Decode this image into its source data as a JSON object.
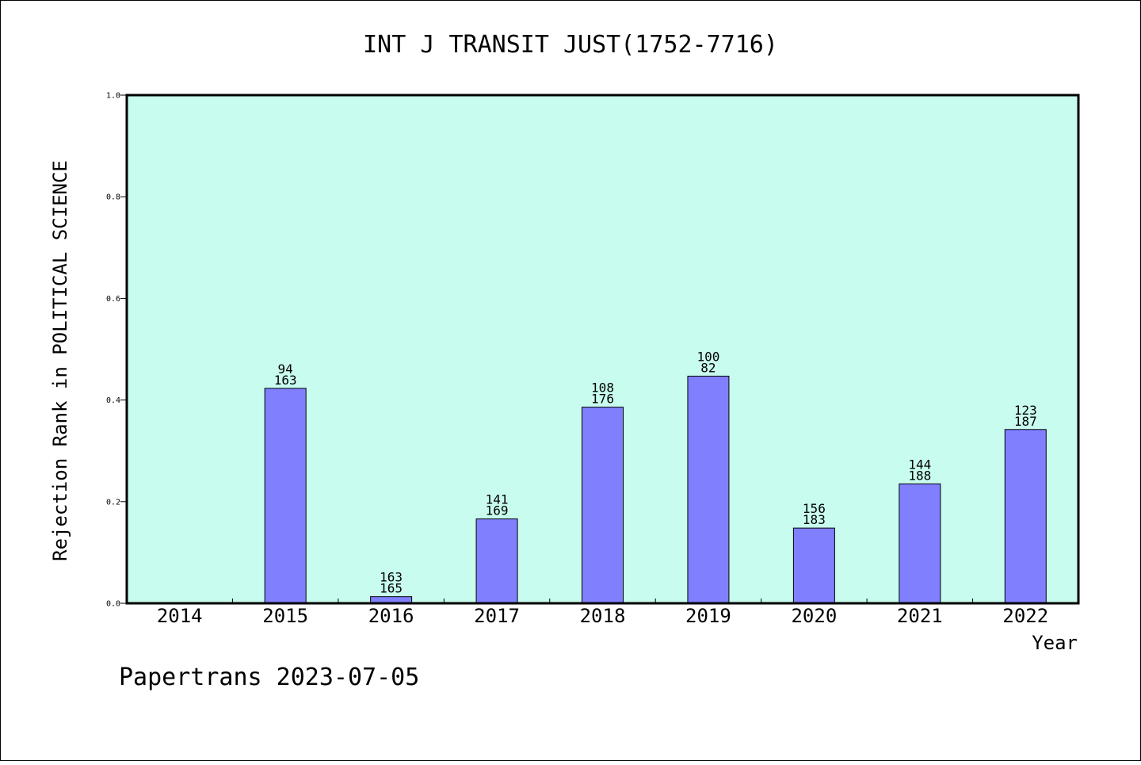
{
  "chart_data": {
    "type": "bar",
    "title": "INT J TRANSIT JUST(1752-7716)",
    "xlabel": "Year",
    "ylabel": "Rejection Rank in POLITICAL SCIENCE",
    "ylim": [
      0,
      1.0
    ],
    "yticks": [
      "0.0",
      "0.2",
      "0.4",
      "0.6",
      "0.8",
      "1.0"
    ],
    "grid": false,
    "categories": [
      "2014",
      "2015",
      "2016",
      "2017",
      "2018",
      "2019",
      "2020",
      "2021",
      "2022"
    ],
    "values": [
      0,
      0.423,
      0.013,
      0.166,
      0.386,
      0.447,
      0.148,
      0.235,
      0.342
    ],
    "labels_top": [
      "",
      "94",
      "163",
      "141",
      "108",
      "100",
      "156",
      "144",
      "123"
    ],
    "labels_bottom": [
      "",
      "163",
      "165",
      "169",
      "176",
      "82",
      "183",
      "188",
      "187"
    ],
    "colors": {
      "plot_bg": "#c8fcee",
      "bar_fill": "#8080ff",
      "bar_stroke": "#000000"
    }
  },
  "footer": {
    "text": "Papertrans 2023-07-05"
  }
}
